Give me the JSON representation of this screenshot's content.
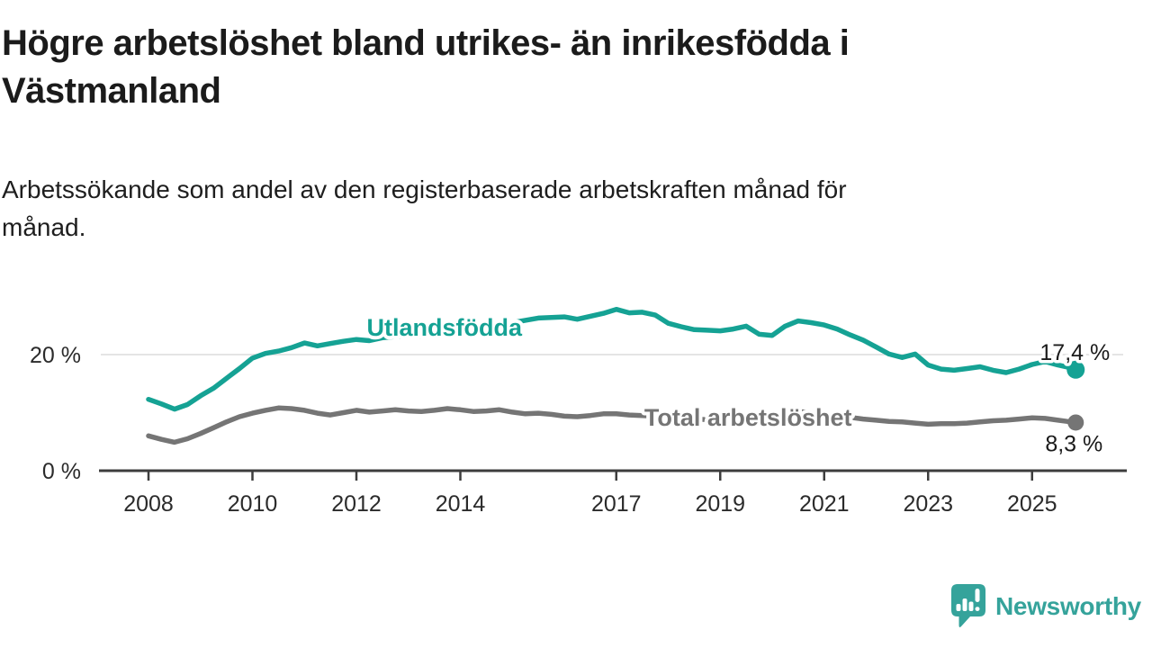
{
  "title": "Högre arbetslöshet bland utrikes- än inrikesfödda i\nVästmanland",
  "subtitle": "Arbetssökande som andel av den registerbaserade arbetskraften månad för\nmånad.",
  "footer": {
    "brand": "Newsworthy"
  },
  "colors": {
    "foreign_born_line": "#15a294",
    "total_line": "#757575",
    "axis": "#3d3d3d",
    "gridline": "#dcdcdc",
    "text": "#1a1a1a",
    "logo_teal": "#35a39b"
  },
  "chart_data": {
    "type": "line",
    "title": "",
    "xlabel": "",
    "ylabel": "",
    "unit": "%",
    "grid": "single horizontal gridline at 20 %",
    "legend_position": "inline labels on lines",
    "xlim": [
      2007.05,
      2026.85
    ],
    "ylim": [
      0,
      34
    ],
    "x_ticks": [
      2008,
      2010,
      2012,
      2014,
      2017,
      2019,
      2021,
      2023,
      2025
    ],
    "y_ticks": [
      {
        "value": 0,
        "label": "0 %"
      },
      {
        "value": 20,
        "label": "20 %"
      }
    ],
    "series": [
      {
        "name": "Utlandsfödda",
        "color": "#15a294",
        "end_value_label": "17,4 %",
        "end_label_position": "above",
        "inline_label": {
          "text": "Utlandsfödda",
          "year": 2012.2,
          "pct": 23.26
        },
        "points": [
          [
            2008,
            12.3
          ],
          [
            2008.25,
            11.5
          ],
          [
            2008.5,
            10.6
          ],
          [
            2008.75,
            11.4
          ],
          [
            2009,
            12.9
          ],
          [
            2009.25,
            14.2
          ],
          [
            2009.5,
            15.9
          ],
          [
            2009.75,
            17.6
          ],
          [
            2010,
            19.4
          ],
          [
            2010.25,
            20.2
          ],
          [
            2010.5,
            20.6
          ],
          [
            2010.75,
            21.2
          ],
          [
            2011,
            22
          ],
          [
            2011.25,
            21.5
          ],
          [
            2011.5,
            21.9
          ],
          [
            2011.75,
            22.3
          ],
          [
            2012,
            22.6
          ],
          [
            2012.25,
            22.4
          ],
          [
            2012.5,
            22.9
          ],
          [
            2012.75,
            23.1
          ],
          [
            2013,
            23.3
          ],
          [
            2013.25,
            23.2
          ],
          [
            2013.5,
            23.6
          ],
          [
            2013.75,
            23.9
          ],
          [
            2014,
            24.1
          ],
          [
            2014.25,
            24.4
          ],
          [
            2014.5,
            24.8
          ],
          [
            2014.75,
            25.2
          ],
          [
            2015,
            25.5
          ],
          [
            2015.25,
            25.9
          ],
          [
            2015.5,
            26.3
          ],
          [
            2015.75,
            26.4
          ],
          [
            2016,
            26.5
          ],
          [
            2016.25,
            26.1
          ],
          [
            2016.5,
            26.6
          ],
          [
            2016.75,
            27.1
          ],
          [
            2017,
            27.8
          ],
          [
            2017.25,
            27.2
          ],
          [
            2017.5,
            27.3
          ],
          [
            2017.75,
            26.8
          ],
          [
            2018,
            25.4
          ],
          [
            2018.25,
            24.8
          ],
          [
            2018.5,
            24.3
          ],
          [
            2018.75,
            24.2
          ],
          [
            2019,
            24.1
          ],
          [
            2019.25,
            24.4
          ],
          [
            2019.5,
            24.9
          ],
          [
            2019.75,
            23.5
          ],
          [
            2020,
            23.3
          ],
          [
            2020.25,
            24.9
          ],
          [
            2020.5,
            25.8
          ],
          [
            2020.75,
            25.5
          ],
          [
            2021,
            25.1
          ],
          [
            2021.25,
            24.4
          ],
          [
            2021.5,
            23.4
          ],
          [
            2021.75,
            22.5
          ],
          [
            2022,
            21.3
          ],
          [
            2022.25,
            20.1
          ],
          [
            2022.5,
            19.5
          ],
          [
            2022.75,
            20.1
          ],
          [
            2023,
            18.2
          ],
          [
            2023.25,
            17.5
          ],
          [
            2023.5,
            17.3
          ],
          [
            2023.75,
            17.6
          ],
          [
            2024,
            17.9
          ],
          [
            2024.25,
            17.3
          ],
          [
            2024.5,
            16.9
          ],
          [
            2024.75,
            17.5
          ],
          [
            2025,
            18.3
          ],
          [
            2025.25,
            18.8
          ],
          [
            2025.5,
            18.2
          ],
          [
            2025.75,
            17.7
          ],
          [
            2025.84,
            17.4
          ]
        ]
      },
      {
        "name": "Total arbetslöshet",
        "color": "#757575",
        "end_value_label": "8,3 %",
        "end_label_position": "below",
        "inline_label": {
          "text": "Total arbetslöshet",
          "year": 2017.54,
          "pct": 7.75
        },
        "points": [
          [
            2008,
            6
          ],
          [
            2008.25,
            5.4
          ],
          [
            2008.5,
            4.9
          ],
          [
            2008.75,
            5.5
          ],
          [
            2009,
            6.4
          ],
          [
            2009.25,
            7.4
          ],
          [
            2009.5,
            8.4
          ],
          [
            2009.75,
            9.3
          ],
          [
            2010,
            9.9
          ],
          [
            2010.25,
            10.4
          ],
          [
            2010.5,
            10.8
          ],
          [
            2010.75,
            10.7
          ],
          [
            2011,
            10.4
          ],
          [
            2011.25,
            9.9
          ],
          [
            2011.5,
            9.6
          ],
          [
            2011.75,
            10
          ],
          [
            2012,
            10.4
          ],
          [
            2012.25,
            10.1
          ],
          [
            2012.5,
            10.3
          ],
          [
            2012.75,
            10.5
          ],
          [
            2013,
            10.3
          ],
          [
            2013.25,
            10.2
          ],
          [
            2013.5,
            10.4
          ],
          [
            2013.75,
            10.7
          ],
          [
            2014,
            10.5
          ],
          [
            2014.25,
            10.2
          ],
          [
            2014.5,
            10.3
          ],
          [
            2014.75,
            10.5
          ],
          [
            2015,
            10.1
          ],
          [
            2015.25,
            9.8
          ],
          [
            2015.5,
            9.9
          ],
          [
            2015.75,
            9.7
          ],
          [
            2016,
            9.4
          ],
          [
            2016.25,
            9.3
          ],
          [
            2016.5,
            9.5
          ],
          [
            2016.75,
            9.8
          ],
          [
            2017,
            9.8
          ],
          [
            2017.25,
            9.6
          ],
          [
            2017.5,
            9.5
          ],
          [
            2017.75,
            9.4
          ],
          [
            2018,
            9.2
          ],
          [
            2018.25,
            9
          ],
          [
            2018.5,
            8.9
          ],
          [
            2018.75,
            8.8
          ],
          [
            2019,
            8.8
          ],
          [
            2019.25,
            8.7
          ],
          [
            2019.5,
            8.9
          ],
          [
            2019.75,
            9
          ],
          [
            2020,
            9.3
          ],
          [
            2020.25,
            10
          ],
          [
            2020.5,
            10.2
          ],
          [
            2020.75,
            10
          ],
          [
            2021,
            9.8
          ],
          [
            2021.25,
            9.5
          ],
          [
            2021.5,
            9.2
          ],
          [
            2021.75,
            8.9
          ],
          [
            2022,
            8.7
          ],
          [
            2022.25,
            8.5
          ],
          [
            2022.5,
            8.4
          ],
          [
            2022.75,
            8.2
          ],
          [
            2023,
            8
          ],
          [
            2023.25,
            8.1
          ],
          [
            2023.5,
            8.1
          ],
          [
            2023.75,
            8.2
          ],
          [
            2024,
            8.4
          ],
          [
            2024.25,
            8.6
          ],
          [
            2024.5,
            8.7
          ],
          [
            2024.75,
            8.9
          ],
          [
            2025,
            9.1
          ],
          [
            2025.25,
            9
          ],
          [
            2025.5,
            8.7
          ],
          [
            2025.75,
            8.4
          ],
          [
            2025.84,
            8.3
          ]
        ]
      }
    ]
  }
}
